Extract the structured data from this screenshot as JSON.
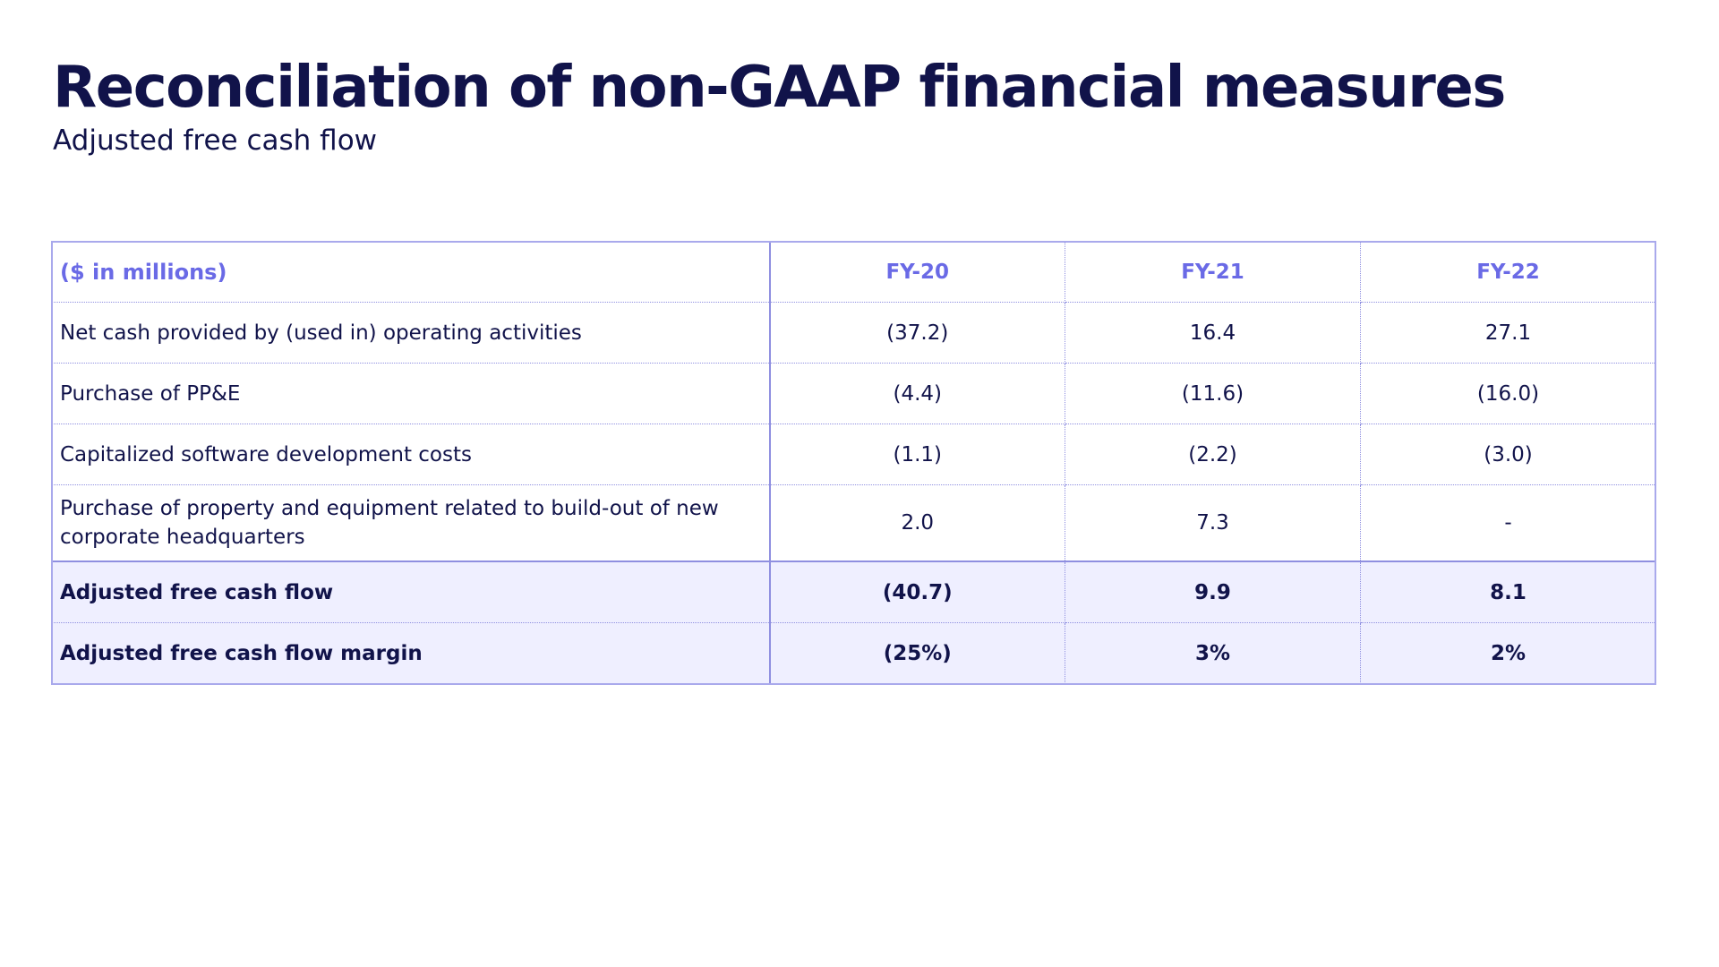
{
  "header": {
    "title": "Reconciliation of non-GAAP financial measures",
    "subtitle": "Adjusted free cash flow"
  },
  "table": {
    "unit_label": "($ in millions)",
    "columns": [
      "FY-20",
      "FY-21",
      "FY-22"
    ],
    "rows": [
      {
        "label": "Net cash provided by (used in) operating activities",
        "values": [
          "(37.2)",
          "16.4",
          "27.1"
        ]
      },
      {
        "label": "Purchase of PP&E",
        "values": [
          "(4.4)",
          "(11.6)",
          "(16.0)"
        ]
      },
      {
        "label": "Capitalized software development costs",
        "values": [
          "(1.1)",
          "(2.2)",
          "(3.0)"
        ]
      },
      {
        "label": "Purchase of property and equipment related to build-out of new corporate headquarters",
        "values": [
          "2.0",
          "7.3",
          "-"
        ]
      },
      {
        "label": "Adjusted free cash flow",
        "values": [
          "(40.7)",
          "9.9",
          "8.1"
        ]
      },
      {
        "label": "Adjusted free cash flow margin",
        "values": [
          "(25%)",
          "3%",
          "2%"
        ]
      }
    ]
  },
  "colors": {
    "title_text": "#11134a",
    "header_accent": "#6a6ae6",
    "border": "#8f8fe0",
    "total_row_bg": "#efefff"
  }
}
